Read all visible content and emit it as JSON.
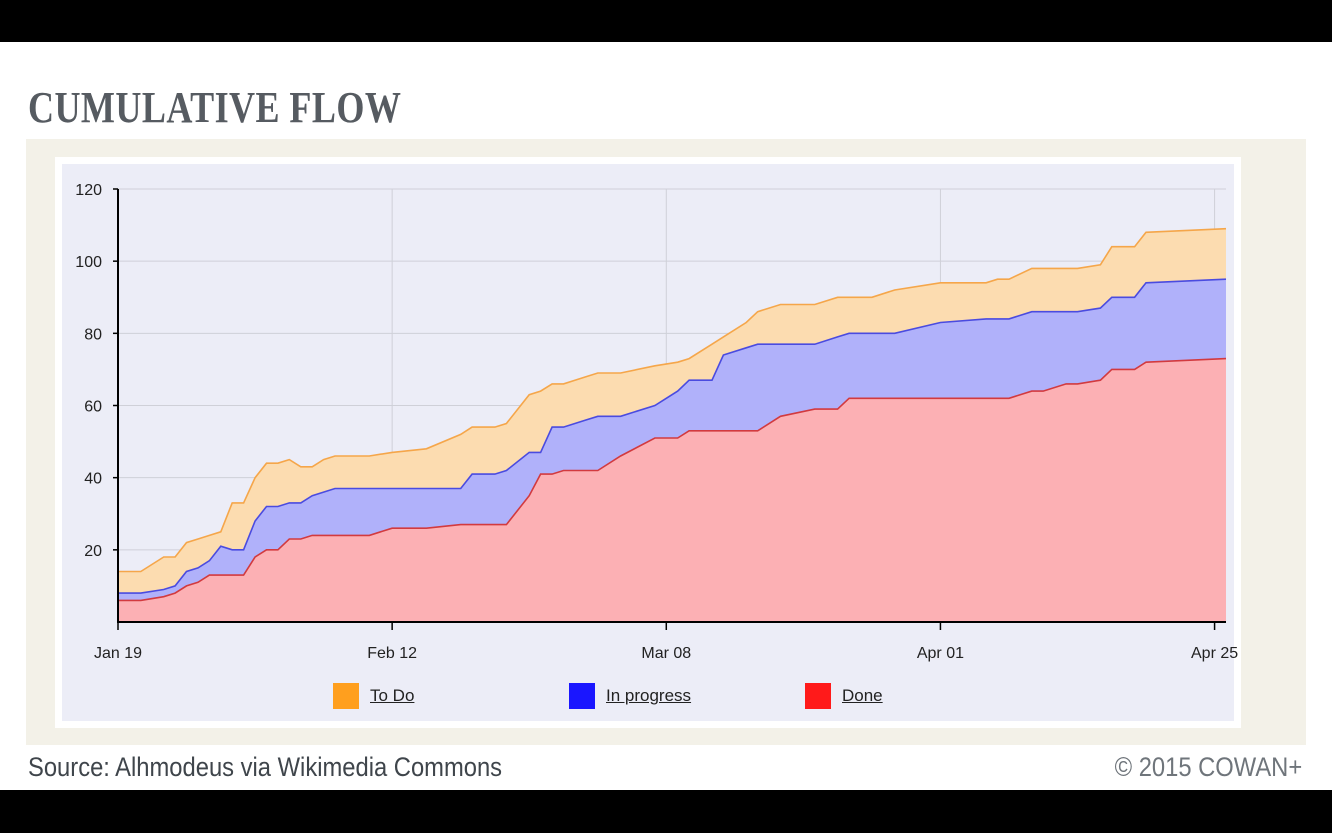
{
  "slide": {
    "title": "CUMULATIVE FLOW",
    "source": "Source: Alhmodeus via Wikimedia Commons",
    "copyright": "© 2015 COWAN+"
  },
  "chart_data": {
    "type": "area",
    "stacked": true,
    "x_tick_labels": [
      "Jan 19",
      "Feb 12",
      "Mar 08",
      "Apr 01",
      "Apr 25"
    ],
    "y_ticks": [
      20,
      40,
      60,
      80,
      100,
      120
    ],
    "ylim": [
      0,
      120
    ],
    "xlim": [
      "2015-01-19",
      "2015-04-26"
    ],
    "grid": true,
    "legend_position": "bottom",
    "legend": [
      {
        "name": "To Do",
        "color": "#ff9f1e"
      },
      {
        "name": "In progress",
        "color": "#1a16ff"
      },
      {
        "name": "Done",
        "color": "#ff1a1a"
      }
    ],
    "x": [
      "2015-01-19",
      "2015-01-21",
      "2015-01-23",
      "2015-01-24",
      "2015-01-25",
      "2015-01-26",
      "2015-01-27",
      "2015-01-28",
      "2015-01-29",
      "2015-01-30",
      "2015-01-31",
      "2015-02-01",
      "2015-02-02",
      "2015-02-03",
      "2015-02-04",
      "2015-02-05",
      "2015-02-06",
      "2015-02-07",
      "2015-02-08",
      "2015-02-09",
      "2015-02-10",
      "2015-02-12",
      "2015-02-15",
      "2015-02-18",
      "2015-02-19",
      "2015-02-21",
      "2015-02-22",
      "2015-02-24",
      "2015-02-25",
      "2015-02-26",
      "2015-02-27",
      "2015-03-01",
      "2015-03-02",
      "2015-03-04",
      "2015-03-07",
      "2015-03-09",
      "2015-03-10",
      "2015-03-12",
      "2015-03-13",
      "2015-03-15",
      "2015-03-16",
      "2015-03-18",
      "2015-03-21",
      "2015-03-23",
      "2015-03-24",
      "2015-03-26",
      "2015-03-28",
      "2015-04-01",
      "2015-04-05",
      "2015-04-06",
      "2015-04-07",
      "2015-04-09",
      "2015-04-10",
      "2015-04-12",
      "2015-04-13",
      "2015-04-15",
      "2015-04-16",
      "2015-04-18",
      "2015-04-19",
      "2015-04-26"
    ],
    "series": [
      {
        "name": "Done",
        "values": [
          6,
          6,
          7,
          8,
          10,
          11,
          13,
          13,
          13,
          13,
          18,
          20,
          20,
          23,
          23,
          24,
          24,
          24,
          24,
          24,
          24,
          26,
          26,
          27,
          27,
          27,
          27,
          35,
          41,
          41,
          42,
          42,
          42,
          46,
          51,
          51,
          53,
          53,
          53,
          53,
          53,
          57,
          59,
          59,
          62,
          62,
          62,
          62,
          62,
          62,
          62,
          64,
          64,
          66,
          66,
          67,
          70,
          70,
          72,
          73
        ]
      },
      {
        "name": "In progress",
        "values": [
          8,
          8,
          9,
          10,
          14,
          15,
          17,
          21,
          20,
          20,
          28,
          32,
          32,
          33,
          33,
          35,
          36,
          37,
          37,
          37,
          37,
          37,
          37,
          37,
          41,
          41,
          42,
          47,
          47,
          54,
          54,
          56,
          57,
          57,
          60,
          64,
          67,
          67,
          74,
          76,
          77,
          77,
          77,
          79,
          80,
          80,
          80,
          83,
          84,
          84,
          84,
          86,
          86,
          86,
          86,
          87,
          90,
          90,
          94,
          95
        ]
      },
      {
        "name": "To Do",
        "values": [
          14,
          14,
          18,
          18,
          22,
          23,
          24,
          25,
          33,
          33,
          40,
          44,
          44,
          45,
          43,
          43,
          45,
          46,
          46,
          46,
          46,
          47,
          48,
          52,
          54,
          54,
          55,
          63,
          64,
          66,
          66,
          68,
          69,
          69,
          71,
          72,
          73,
          77,
          79,
          83,
          86,
          88,
          88,
          90,
          90,
          90,
          92,
          94,
          94,
          95,
          95,
          98,
          98,
          98,
          98,
          99,
          104,
          104,
          108,
          109
        ]
      }
    ]
  }
}
